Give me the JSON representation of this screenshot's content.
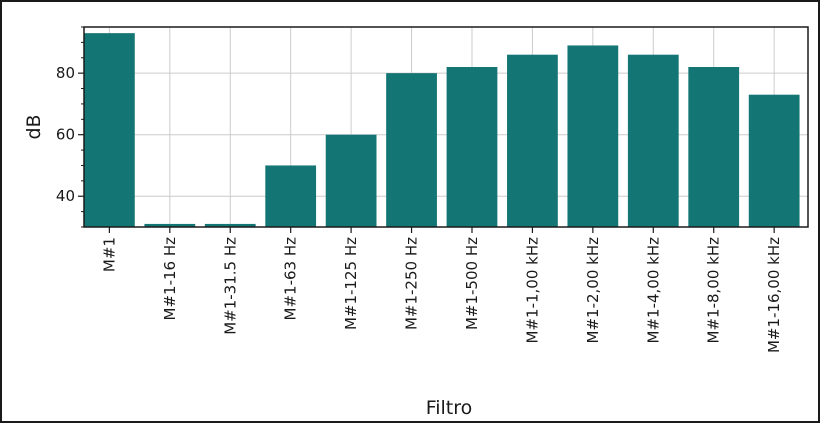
{
  "chart_data": {
    "type": "bar",
    "title": "",
    "xlabel": "Filtro",
    "ylabel": "dB",
    "categories": [
      "M#1",
      "M#1-16 Hz",
      "M#1-31.5 Hz",
      "M#1-63 Hz",
      "M#1-125 Hz",
      "M#1-250 Hz",
      "M#1-500 Hz",
      "M#1-1,00 kHz",
      "M#1-2,00 kHz",
      "M#1-4,00 kHz",
      "M#1-8,00 kHz",
      "M#1-16,00 kHz"
    ],
    "values": [
      93,
      31,
      31,
      50,
      60,
      80,
      82,
      86,
      89,
      86,
      82,
      73
    ],
    "ylim": [
      30,
      95
    ],
    "yticks": [
      40,
      60,
      80
    ],
    "grid": true,
    "colors": {
      "bar": "#137574",
      "grid": "#cccccc",
      "axis": "#1a1a1a"
    }
  }
}
